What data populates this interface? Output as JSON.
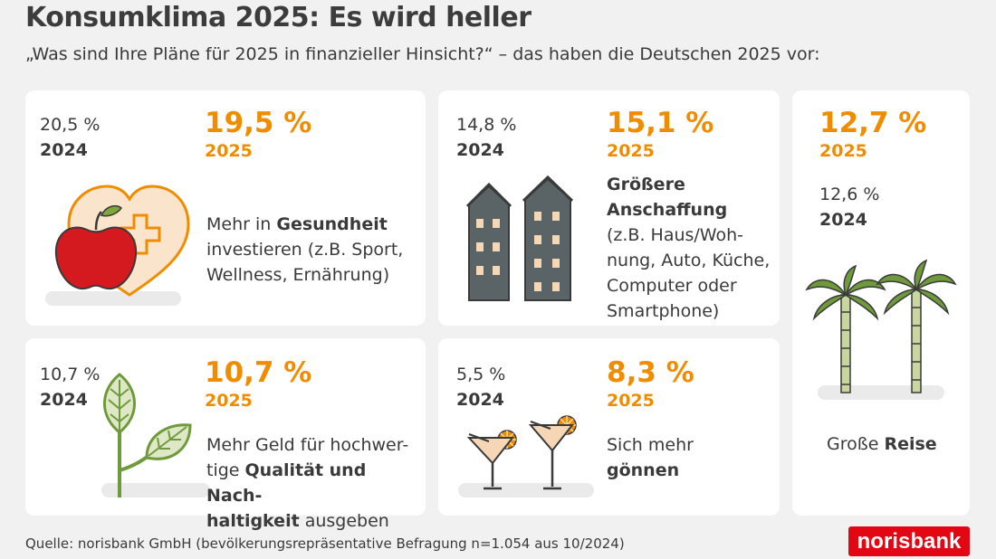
{
  "header": {
    "title": "Konsumklima 2025: Es wird heller",
    "subtitle": "„Was sind Ihre Pläne für 2025 in finanzieller Hinsicht?“ – das haben die Deutschen 2025 vor:"
  },
  "cards": {
    "health": {
      "v2024": "20,5 %",
      "y2024": "2024",
      "v2025": "19,5 %",
      "y2025": "2025",
      "desc_pre": "Mehr in ",
      "desc_bold": "Gesundheit",
      "desc_line2": "investieren (z.B. Sport,",
      "desc_line3": "Wellness, Ernährung)",
      "icon": "heart-apple-cross-icon"
    },
    "purchase": {
      "v2024": "14,8 %",
      "y2024": "2024",
      "v2025": "15,1 %",
      "y2025": "2025",
      "desc_bold1": "Größere",
      "desc_bold2": "Anschaffung",
      "desc_line3": "(z.B. Haus/Woh-",
      "desc_line4": "nung, Auto, Küche,",
      "desc_line5": "Computer oder",
      "desc_line6": "Smartphone)",
      "icon": "buildings-icon"
    },
    "travel": {
      "v2025": "12,7 %",
      "y2025": "2025",
      "v2024": "12,6 %",
      "y2024": "2024",
      "desc_pre": "Große ",
      "desc_bold": "Reise",
      "icon": "palm-trees-icon"
    },
    "quality": {
      "v2024": "10,7 %",
      "y2024": "2024",
      "v2025": "10,7 %",
      "y2025": "2025",
      "desc_line1": "Mehr Geld für hochwer-",
      "desc_line2_pre": "tige ",
      "desc_line2_bold": "Qualität und Nach-",
      "desc_line3_bold": "haltigkeit",
      "desc_line3_post": " ausgeben",
      "icon": "leaf-plant-icon"
    },
    "treat": {
      "v2024": "5,5 %",
      "y2024": "2024",
      "v2025": "8,3 %",
      "y2025": "2025",
      "desc_line1": "Sich mehr",
      "desc_bold": "gönnen",
      "icon": "cocktail-glasses-icon"
    }
  },
  "footer": {
    "source": "Quelle: norisbank GmbH (bevölkerungsrepräsentative Befragung n=1.054 aus 10/2024)",
    "logo": "norisbank"
  },
  "colors": {
    "accent": "#f08c00",
    "brand": "#e30613",
    "text": "#3a3a3a",
    "green": "#6f9a3b",
    "building": "#5a6466"
  }
}
